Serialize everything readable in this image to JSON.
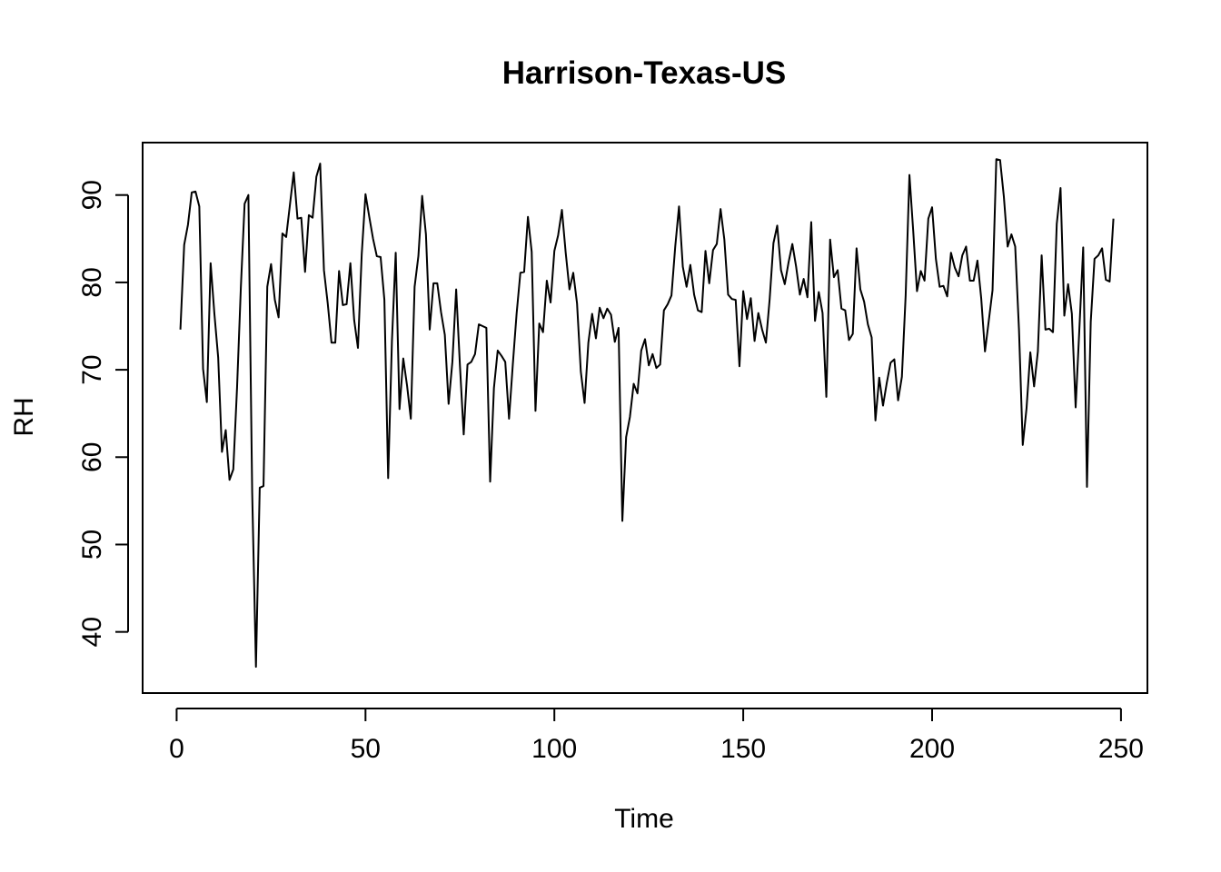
{
  "chart_data": {
    "type": "line",
    "title": "Harrison-Texas-US",
    "xlabel": "Time",
    "ylabel": "RH",
    "xlim": [
      -9,
      257
    ],
    "ylim": [
      33,
      96
    ],
    "xticks": [
      0,
      50,
      100,
      150,
      200,
      250
    ],
    "yticks": [
      40,
      50,
      60,
      70,
      80,
      90
    ],
    "grid": false,
    "line_color": "#000000",
    "series": [
      {
        "values": [
          74.6,
          84.3,
          86.6,
          90.3,
          90.4,
          88.7,
          70.1,
          66.3,
          82.2,
          76.4,
          71.4,
          60.6,
          63.1,
          57.4,
          58.6,
          68.0,
          79.4,
          89.0,
          90.0,
          56.0,
          36.0,
          56.5,
          56.7,
          79.5,
          82.1,
          78.0,
          76.0,
          85.6,
          85.2,
          88.9,
          92.6,
          87.3,
          87.4,
          81.2,
          87.7,
          87.4,
          92.1,
          93.6,
          81.4,
          77.6,
          73.1,
          73.1,
          81.3,
          77.4,
          77.5,
          82.2,
          75.7,
          72.5,
          83.2,
          90.1,
          87.5,
          85.0,
          83.0,
          82.9,
          78.0,
          57.6,
          73.3,
          83.4,
          65.5,
          71.3,
          68.2,
          64.4,
          79.5,
          83.0,
          89.9,
          85.5,
          74.6,
          79.9,
          79.9,
          76.6,
          74.0,
          66.1,
          70.9,
          79.2,
          70.5,
          62.6,
          70.6,
          70.9,
          71.8,
          75.2,
          75.0,
          74.8,
          57.2,
          67.9,
          72.2,
          71.6,
          70.9,
          64.4,
          70.6,
          76.4,
          81.1,
          81.2,
          87.5,
          83.5,
          65.3,
          75.3,
          74.3,
          80.2,
          77.7,
          83.6,
          85.4,
          88.3,
          83.4,
          79.2,
          81.1,
          77.6,
          69.8,
          66.2,
          73.1,
          76.4,
          73.6,
          77.1,
          75.9,
          77.0,
          76.3,
          73.2,
          74.8,
          52.7,
          62.3,
          64.6,
          68.4,
          67.3,
          72.2,
          73.5,
          70.5,
          71.8,
          70.2,
          70.6,
          76.8,
          77.5,
          78.5,
          84.1,
          88.7,
          81.8,
          79.5,
          82.0,
          78.6,
          76.8,
          76.6,
          83.6,
          79.9,
          83.7,
          84.4,
          88.4,
          84.9,
          78.6,
          78.1,
          78.0,
          70.4,
          79.0,
          75.8,
          78.2,
          73.3,
          76.5,
          74.6,
          73.1,
          78.1,
          84.5,
          86.5,
          81.4,
          79.8,
          82.3,
          84.4,
          81.8,
          78.6,
          80.4,
          78.3,
          86.9,
          75.6,
          78.9,
          76.5,
          66.9,
          84.9,
          80.6,
          81.4,
          77.0,
          76.8,
          73.4,
          74.1,
          83.9,
          79.2,
          77.8,
          75.2,
          73.7,
          64.2,
          69.1,
          65.9,
          68.5,
          70.8,
          71.2,
          66.5,
          69.2,
          78.5,
          92.3,
          85.9,
          79.0,
          81.3,
          80.2,
          87.3,
          88.6,
          82.7,
          79.5,
          79.6,
          78.4,
          83.4,
          81.7,
          80.7,
          83.1,
          84.1,
          80.2,
          80.2,
          82.5,
          78.2,
          72.1,
          75.6,
          79.1,
          94.1,
          94.0,
          89.8,
          84.1,
          85.5,
          84.1,
          74.6,
          61.4,
          65.6,
          72.0,
          68.1,
          72.1,
          83.1,
          74.6,
          74.7,
          74.3,
          86.7,
          90.8,
          76.2,
          79.8,
          76.4,
          65.7,
          74.8,
          84.0,
          56.6,
          75.5,
          82.7,
          83.1,
          83.9,
          80.3,
          80.1,
          87.3
        ]
      }
    ]
  }
}
